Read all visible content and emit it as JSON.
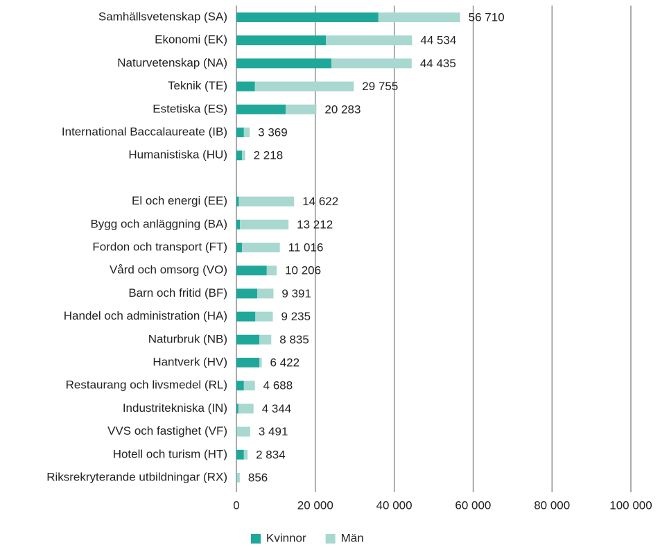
{
  "chart_data": {
    "type": "bar",
    "orientation": "horizontal",
    "stacked": true,
    "categories": [
      "Samhällsvetenskap (SA)",
      "Ekonomi (EK)",
      "Naturvetenskap (NA)",
      "Teknik (TE)",
      "Estetiska (ES)",
      "International Baccalaureate (IB)",
      "Humanistiska (HU)",
      null,
      "El och energi (EE)",
      "Bygg och anläggning (BA)",
      "Fordon och transport (FT)",
      "Vård och omsorg (VO)",
      "Barn och fritid (BF)",
      "Handel och administration (HA)",
      "Naturbruk (NB)",
      "Hantverk (HV)",
      "Restaurang och livsmedel (RL)",
      "Industritekniska (IN)",
      "VVS och fastighet (VF)",
      "Hotell och turism (HT)",
      "Riksrekryterande utbildningar (RX)"
    ],
    "series": [
      {
        "name": "Kvinnor",
        "color": "#1fa89a",
        "values": [
          36000,
          22700,
          24100,
          4700,
          12500,
          1900,
          1400,
          null,
          600,
          900,
          1400,
          7700,
          5300,
          4800,
          5800,
          5800,
          1900,
          500,
          100,
          1900,
          100
        ]
      },
      {
        "name": "Män",
        "color": "#a8d8cf",
        "values": [
          20710,
          21834,
          20335,
          25055,
          7783,
          1469,
          818,
          null,
          14022,
          12312,
          9616,
          2506,
          4091,
          4435,
          3035,
          622,
          2788,
          3844,
          3391,
          934,
          756
        ]
      }
    ],
    "totals": {
      "values": [
        56710,
        44534,
        44435,
        29755,
        20283,
        3369,
        2218,
        null,
        14622,
        13212,
        11016,
        10206,
        9391,
        9235,
        8835,
        6422,
        4688,
        4344,
        3491,
        2834,
        856
      ],
      "value_labels": [
        "56 710",
        "44 534",
        "44 435",
        "29 755",
        "20 283",
        "3 369",
        "2 218",
        null,
        "14 622",
        "13 212",
        "11 016",
        "10 206",
        "9 391",
        "9 235",
        "8 835",
        "6 422",
        "4 688",
        "4 344",
        "3 491",
        "2 834",
        "856"
      ]
    },
    "xlim": [
      0,
      100000
    ],
    "xticks": [
      0,
      {
        "value": 20000,
        "label": "20 000"
      },
      {
        "value": 40000,
        "label": "40 000"
      },
      {
        "value": 60000,
        "label": "60 000"
      },
      {
        "value": 80000,
        "label": "80 000"
      },
      {
        "value": 100000,
        "label": "100 000"
      }
    ],
    "grid": true,
    "legend": "bottom"
  }
}
